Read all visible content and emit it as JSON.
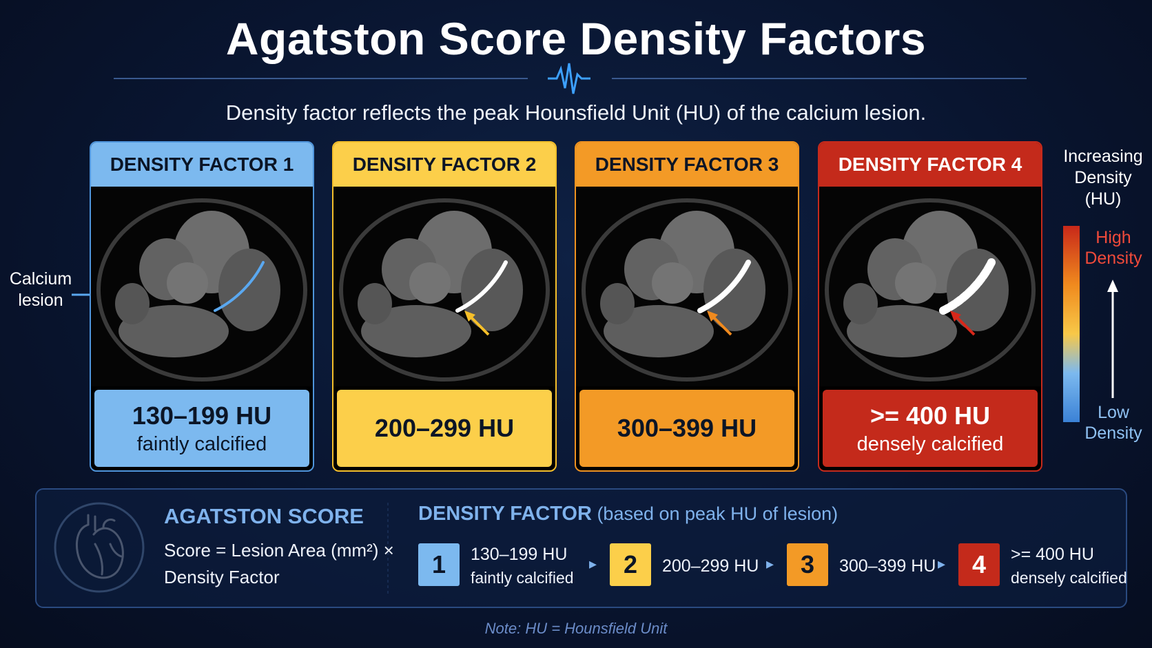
{
  "title": "Agatston Score Density Factors",
  "subtitle": "Density factor reflects the peak Hounsfield Unit (HU) of the calcium lesion.",
  "callout": "Calcium lesion",
  "panels": [
    {
      "header": "DENSITY FACTOR 1",
      "range": "130–199 HU",
      "description": "faintly calcified"
    },
    {
      "header": "DENSITY FACTOR 2",
      "range": "200–299 HU"
    },
    {
      "header": "DENSITY FACTOR 3",
      "range": "300–399 HU"
    },
    {
      "header": "DENSITY FACTOR 4",
      "range": ">= 400 HU",
      "description": "densely calcified"
    }
  ],
  "scale": {
    "title": "Increasing Density (HU)",
    "high": "High Density",
    "low": "Low Density"
  },
  "summary": {
    "heading": "AGATSTON SCORE",
    "formula_line1": "Score = Lesion Area (mm²) ×",
    "formula_line2": "Density Factor",
    "factor_heading": "DENSITY FACTOR",
    "factor_note": "(based on peak HU of lesion)",
    "steps": [
      {
        "number": 1,
        "range": "130–199 HU",
        "description": "faintly calcified"
      },
      {
        "number": 2,
        "range": "200–299 HU"
      },
      {
        "number": 3,
        "range": "300–399 HU"
      },
      {
        "number": 4,
        "range": ">= 400 HU",
        "description": "densely calcified"
      }
    ]
  },
  "note": "Note: HU = Hounsfield Unit"
}
